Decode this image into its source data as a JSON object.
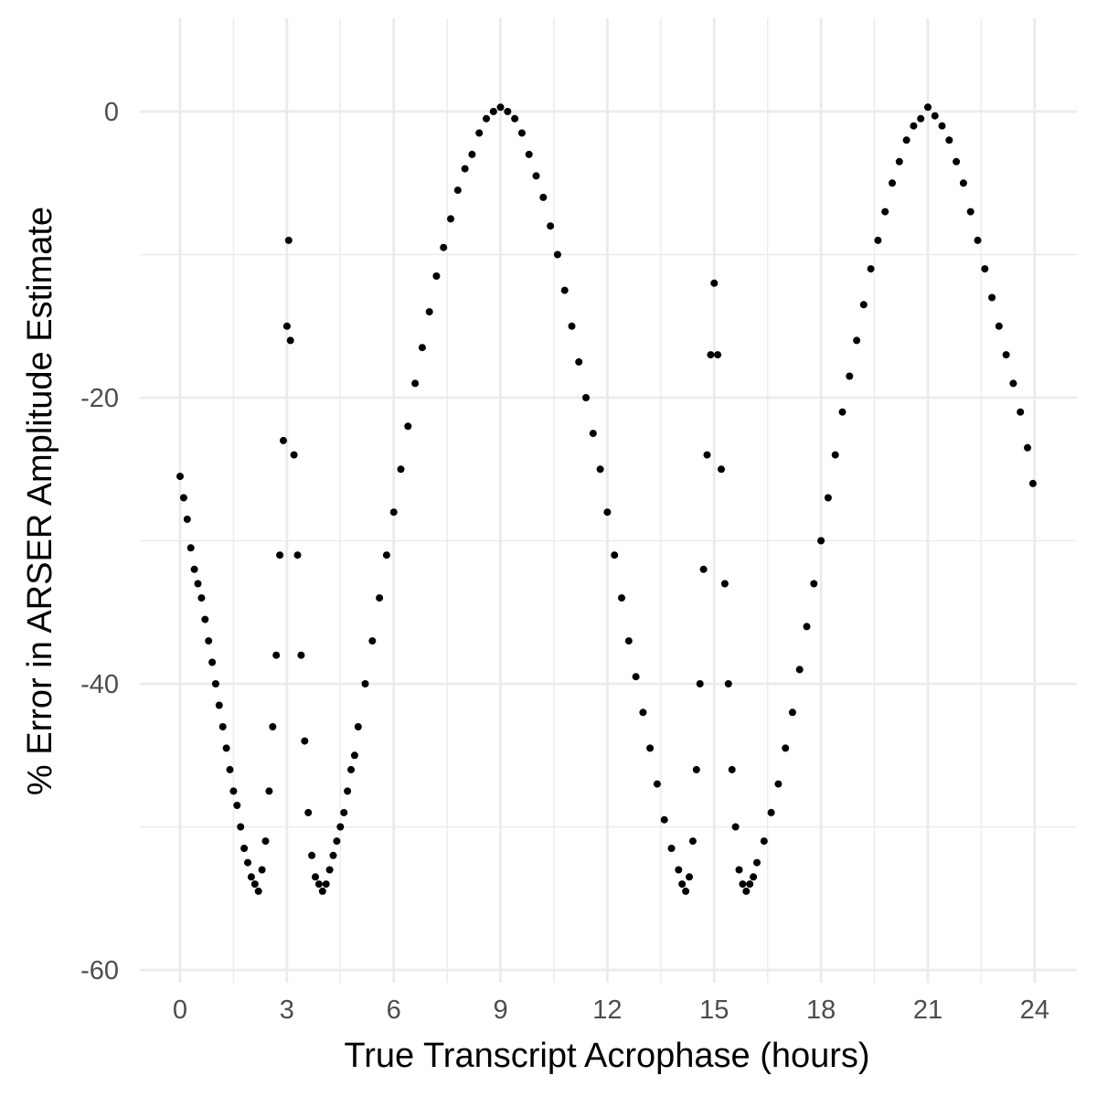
{
  "chart_data": {
    "type": "scatter",
    "title": "",
    "xlabel": "True Transcript Acrophase (hours)",
    "ylabel": "% Error in ARSER Amplitude Estimate",
    "xlim": [
      -1.2,
      25.2
    ],
    "ylim": [
      -60,
      5.5
    ],
    "x_ticks": [
      0,
      3,
      6,
      9,
      12,
      15,
      18,
      21,
      24
    ],
    "y_ticks": [
      0,
      -20,
      -40,
      -60
    ],
    "x_tick_labels": [
      "0",
      "3",
      "6",
      "9",
      "12",
      "15",
      "18",
      "21",
      "24"
    ],
    "y_tick_labels": [
      "0",
      "-20",
      "-40",
      "-60"
    ],
    "grid": true,
    "legend": "none",
    "point_color": "#000000",
    "grid_color": "#ebebeb",
    "series": [
      {
        "values": [
          [
            0.0,
            -25.5
          ],
          [
            0.1,
            -27
          ],
          [
            0.2,
            -28.5
          ],
          [
            0.3,
            -30.5
          ],
          [
            0.4,
            -32
          ],
          [
            0.5,
            -33
          ],
          [
            0.6,
            -34
          ],
          [
            0.7,
            -35.5
          ],
          [
            0.8,
            -37
          ],
          [
            0.9,
            -38.5
          ],
          [
            1.0,
            -40
          ],
          [
            1.1,
            -41.5
          ],
          [
            1.2,
            -43
          ],
          [
            1.3,
            -44.5
          ],
          [
            1.4,
            -46
          ],
          [
            1.5,
            -47.5
          ],
          [
            1.6,
            -48.5
          ],
          [
            1.7,
            -50
          ],
          [
            1.8,
            -51.5
          ],
          [
            1.9,
            -52.5
          ],
          [
            2.0,
            -53.5
          ],
          [
            2.1,
            -54
          ],
          [
            2.2,
            -54.5
          ],
          [
            2.3,
            -53
          ],
          [
            2.4,
            -51
          ],
          [
            2.5,
            -47.5
          ],
          [
            2.6,
            -43
          ],
          [
            2.7,
            -38
          ],
          [
            2.8,
            -31
          ],
          [
            2.9,
            -23
          ],
          [
            3.0,
            -15
          ],
          [
            3.05,
            -9
          ],
          [
            3.1,
            -16
          ],
          [
            3.2,
            -24
          ],
          [
            3.3,
            -31
          ],
          [
            3.4,
            -38
          ],
          [
            3.5,
            -44
          ],
          [
            3.6,
            -49
          ],
          [
            3.7,
            -52
          ],
          [
            3.8,
            -53.5
          ],
          [
            3.9,
            -54
          ],
          [
            4.0,
            -54.5
          ],
          [
            4.1,
            -54
          ],
          [
            4.2,
            -53
          ],
          [
            4.3,
            -52
          ],
          [
            4.4,
            -51
          ],
          [
            4.5,
            -50
          ],
          [
            4.6,
            -49
          ],
          [
            4.7,
            -47.5
          ],
          [
            4.8,
            -46
          ],
          [
            4.9,
            -45
          ],
          [
            5.0,
            -43
          ],
          [
            5.2,
            -40
          ],
          [
            5.4,
            -37
          ],
          [
            5.6,
            -34
          ],
          [
            5.8,
            -31
          ],
          [
            6.0,
            -28
          ],
          [
            6.2,
            -25
          ],
          [
            6.4,
            -22
          ],
          [
            6.6,
            -19
          ],
          [
            6.8,
            -16.5
          ],
          [
            7.0,
            -14
          ],
          [
            7.2,
            -11.5
          ],
          [
            7.4,
            -9.5
          ],
          [
            7.6,
            -7.5
          ],
          [
            7.8,
            -5.5
          ],
          [
            8.0,
            -4
          ],
          [
            8.2,
            -3
          ],
          [
            8.4,
            -1.5
          ],
          [
            8.6,
            -0.5
          ],
          [
            8.8,
            0
          ],
          [
            9.0,
            0.3
          ],
          [
            9.2,
            0
          ],
          [
            9.4,
            -0.5
          ],
          [
            9.6,
            -1.5
          ],
          [
            9.8,
            -3
          ],
          [
            10.0,
            -4.5
          ],
          [
            10.2,
            -6
          ],
          [
            10.4,
            -8
          ],
          [
            10.6,
            -10
          ],
          [
            10.8,
            -12.5
          ],
          [
            11.0,
            -15
          ],
          [
            11.2,
            -17.5
          ],
          [
            11.4,
            -20
          ],
          [
            11.6,
            -22.5
          ],
          [
            11.8,
            -25
          ],
          [
            12.0,
            -28
          ],
          [
            12.2,
            -31
          ],
          [
            12.4,
            -34
          ],
          [
            12.6,
            -37
          ],
          [
            12.8,
            -39.5
          ],
          [
            13.0,
            -42
          ],
          [
            13.2,
            -44.5
          ],
          [
            13.4,
            -47
          ],
          [
            13.6,
            -49.5
          ],
          [
            13.8,
            -51.5
          ],
          [
            14.0,
            -53
          ],
          [
            14.1,
            -54
          ],
          [
            14.2,
            -54.5
          ],
          [
            14.3,
            -53.5
          ],
          [
            14.4,
            -51
          ],
          [
            14.5,
            -46
          ],
          [
            14.6,
            -40
          ],
          [
            14.7,
            -32
          ],
          [
            14.8,
            -24
          ],
          [
            14.9,
            -17
          ],
          [
            15.0,
            -12
          ],
          [
            15.1,
            -17
          ],
          [
            15.2,
            -25
          ],
          [
            15.3,
            -33
          ],
          [
            15.4,
            -40
          ],
          [
            15.5,
            -46
          ],
          [
            15.6,
            -50
          ],
          [
            15.7,
            -53
          ],
          [
            15.8,
            -54
          ],
          [
            15.9,
            -54.5
          ],
          [
            16.0,
            -54
          ],
          [
            16.1,
            -53.5
          ],
          [
            16.2,
            -52.5
          ],
          [
            16.4,
            -51
          ],
          [
            16.6,
            -49
          ],
          [
            16.8,
            -47
          ],
          [
            17.0,
            -44.5
          ],
          [
            17.2,
            -42
          ],
          [
            17.4,
            -39
          ],
          [
            17.6,
            -36
          ],
          [
            17.8,
            -33
          ],
          [
            18.0,
            -30
          ],
          [
            18.2,
            -27
          ],
          [
            18.4,
            -24
          ],
          [
            18.6,
            -21
          ],
          [
            18.8,
            -18.5
          ],
          [
            19.0,
            -16
          ],
          [
            19.2,
            -13.5
          ],
          [
            19.4,
            -11
          ],
          [
            19.6,
            -9
          ],
          [
            19.8,
            -7
          ],
          [
            20.0,
            -5
          ],
          [
            20.2,
            -3.5
          ],
          [
            20.4,
            -2
          ],
          [
            20.6,
            -1
          ],
          [
            20.8,
            -0.5
          ],
          [
            21.0,
            0.3
          ],
          [
            21.2,
            -0.3
          ],
          [
            21.4,
            -1
          ],
          [
            21.6,
            -2
          ],
          [
            21.8,
            -3.5
          ],
          [
            22.0,
            -5
          ],
          [
            22.2,
            -7
          ],
          [
            22.4,
            -9
          ],
          [
            22.6,
            -11
          ],
          [
            22.8,
            -13
          ],
          [
            23.0,
            -15
          ],
          [
            23.2,
            -17
          ],
          [
            23.4,
            -19
          ],
          [
            23.6,
            -21
          ],
          [
            23.8,
            -23.5
          ],
          [
            23.95,
            -26
          ]
        ]
      }
    ]
  }
}
